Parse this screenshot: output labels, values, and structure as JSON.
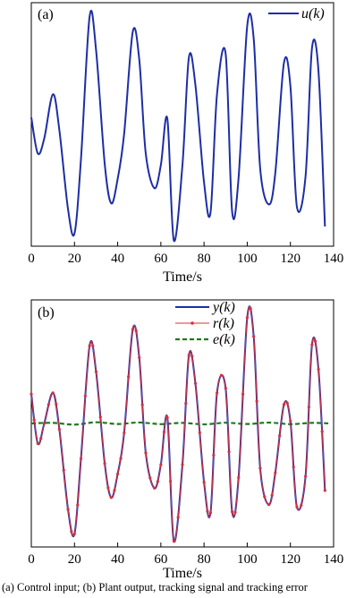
{
  "caption": "(a) Control input; (b) Plant output, tracking signal and tracking error",
  "colors": {
    "u": "#1d2ea6",
    "y": "#1d2ea6",
    "r": "#d9303a",
    "e": "#1e7a1e"
  },
  "chart_data": [
    {
      "type": "line",
      "panel_label": "(a)",
      "xlabel": "Time/s",
      "ylabel": "",
      "xlim": [
        0,
        140
      ],
      "xticks": [
        0,
        20,
        40,
        60,
        80,
        100,
        120,
        140
      ],
      "ylim": [
        -1.05,
        1.05
      ],
      "legend_position": "top-right",
      "series": [
        {
          "name": "u(k)",
          "x": [
            0,
            3,
            6,
            10,
            13,
            17,
            20,
            23,
            27,
            30,
            34,
            37,
            40,
            43,
            47,
            50,
            53,
            57,
            60,
            63,
            66,
            70,
            73,
            76,
            80,
            83,
            86,
            90,
            93,
            96,
            100,
            103,
            106,
            110,
            113,
            117,
            120,
            123,
            127,
            130,
            133,
            136
          ],
          "y": [
            0.06,
            -0.25,
            -0.12,
            0.26,
            -0.05,
            -0.73,
            -0.94,
            -0.3,
            0.93,
            0.64,
            -0.34,
            -0.68,
            -0.47,
            -0.08,
            0.8,
            0.56,
            -0.25,
            -0.55,
            -0.35,
            0.05,
            -1.0,
            -0.35,
            0.58,
            0.34,
            -0.5,
            -0.76,
            0.26,
            0.61,
            -0.75,
            -0.46,
            0.85,
            0.74,
            -0.38,
            -0.69,
            -0.42,
            0.53,
            0.33,
            -0.71,
            -0.45,
            0.66,
            0.46,
            -0.88
          ]
        }
      ]
    },
    {
      "type": "line",
      "panel_label": "(b)",
      "xlabel": "Time/s",
      "ylabel": "",
      "xlim": [
        0,
        140
      ],
      "xticks": [
        0,
        20,
        40,
        60,
        80,
        100,
        120,
        140
      ],
      "ylim": [
        -1.05,
        1.05
      ],
      "legend_position": "top-center",
      "series": [
        {
          "name": "y(k)",
          "x": [
            0,
            3,
            6,
            10,
            13,
            17,
            20,
            23,
            27,
            30,
            34,
            37,
            40,
            43,
            47,
            50,
            53,
            57,
            60,
            63,
            66,
            70,
            73,
            76,
            80,
            83,
            86,
            90,
            93,
            96,
            100,
            103,
            106,
            110,
            113,
            117,
            120,
            123,
            127,
            130,
            133,
            136
          ],
          "y": [
            0.25,
            -0.17,
            0.0,
            0.26,
            -0.05,
            -0.73,
            -0.94,
            -0.3,
            0.66,
            0.44,
            -0.34,
            -0.63,
            -0.43,
            -0.08,
            0.8,
            0.56,
            -0.25,
            -0.55,
            -0.35,
            0.05,
            -1.0,
            -0.35,
            0.58,
            0.34,
            -0.5,
            -0.76,
            0.26,
            0.3,
            -0.75,
            -0.46,
            0.9,
            0.74,
            -0.38,
            -0.69,
            -0.42,
            0.16,
            0.02,
            -0.71,
            -0.45,
            0.67,
            0.46,
            -0.57
          ]
        },
        {
          "name": "r(k)",
          "x": [
            0,
            3,
            6,
            10,
            13,
            17,
            20,
            23,
            27,
            30,
            34,
            37,
            40,
            43,
            47,
            50,
            53,
            57,
            60,
            63,
            66,
            70,
            73,
            76,
            80,
            83,
            86,
            90,
            93,
            96,
            100,
            103,
            106,
            110,
            113,
            117,
            120,
            123,
            127,
            130,
            133,
            136
          ],
          "y": [
            0.25,
            -0.17,
            0.0,
            0.26,
            -0.05,
            -0.73,
            -0.94,
            -0.3,
            0.66,
            0.44,
            -0.34,
            -0.63,
            -0.43,
            -0.08,
            0.8,
            0.56,
            -0.25,
            -0.55,
            -0.35,
            0.05,
            -1.0,
            -0.35,
            0.58,
            0.34,
            -0.5,
            -0.76,
            0.26,
            0.3,
            -0.75,
            -0.46,
            0.9,
            0.74,
            -0.38,
            -0.69,
            -0.42,
            0.16,
            0.02,
            -0.71,
            -0.45,
            0.67,
            0.46,
            -0.57
          ]
        },
        {
          "name": "e(k)",
          "x": [
            0,
            10,
            20,
            30,
            40,
            50,
            60,
            70,
            80,
            90,
            100,
            110,
            120,
            130,
            138
          ],
          "y": [
            0.0,
            0.005,
            -0.01,
            0.01,
            -0.005,
            0.008,
            -0.006,
            0.005,
            -0.008,
            0.006,
            -0.005,
            0.007,
            -0.006,
            0.005,
            0.0
          ]
        }
      ]
    }
  ]
}
